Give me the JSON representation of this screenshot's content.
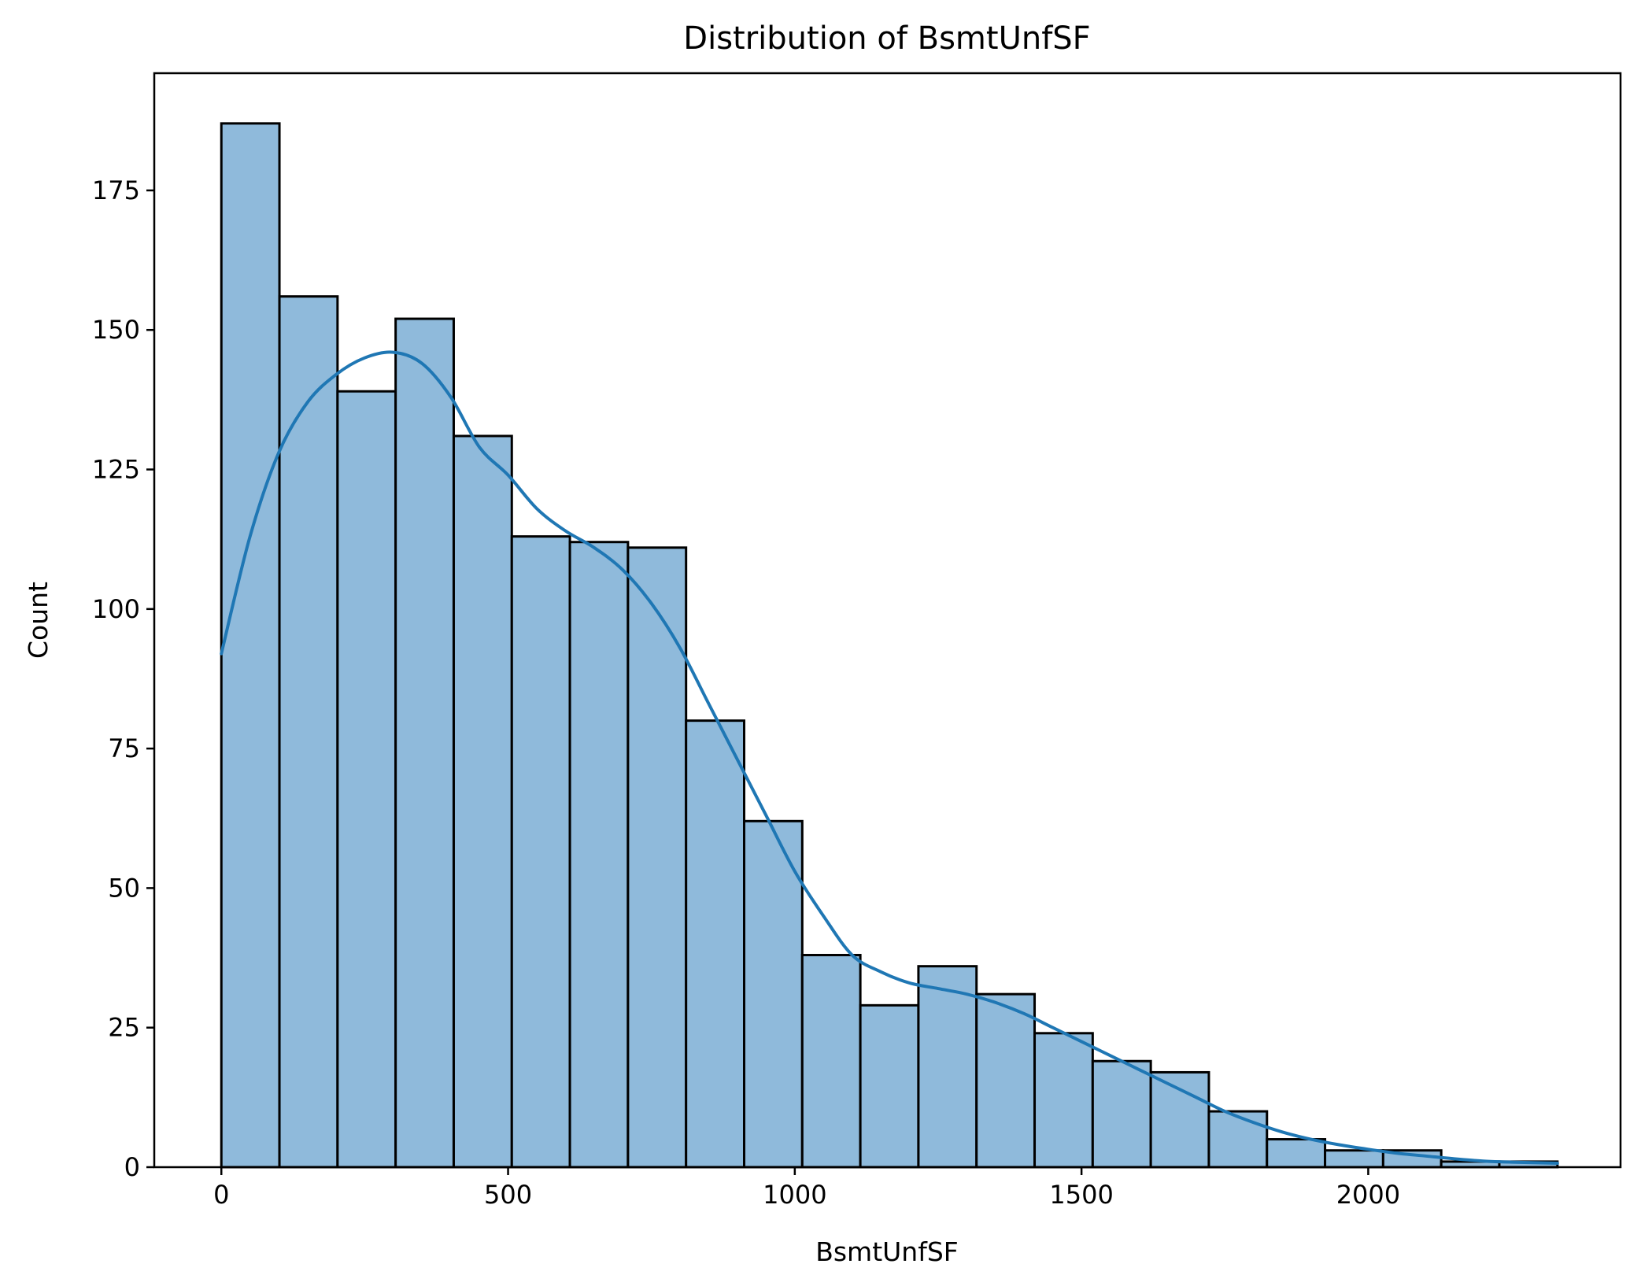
{
  "chart_data": {
    "type": "bar",
    "subtype": "histogram-with-kde",
    "title": "Distribution of BsmtUnfSF",
    "xlabel": "BsmtUnfSF",
    "ylabel": "Count",
    "xlim": [
      -117,
      2440
    ],
    "ylim": [
      0,
      196
    ],
    "xticks": [
      0,
      500,
      1000,
      1500,
      2000
    ],
    "yticks": [
      0,
      25,
      50,
      75,
      100,
      125,
      150,
      175
    ],
    "bin_edges": [
      0,
      101.3,
      202.6,
      303.9,
      405.2,
      506.5,
      607.8,
      709.1,
      810.4,
      911.7,
      1013,
      1114.3,
      1215.6,
      1316.9,
      1418.2,
      1519.5,
      1620.8,
      1722.1,
      1823.4,
      1924.7,
      2026,
      2127.3,
      2228.6,
      2330
    ],
    "values": [
      187,
      156,
      139,
      152,
      131,
      113,
      112,
      111,
      80,
      62,
      38,
      29,
      36,
      31,
      24,
      19,
      17,
      10,
      5,
      3,
      3,
      1,
      1
    ],
    "kde": {
      "x": [
        0,
        50,
        100,
        150,
        200,
        250,
        300,
        350,
        400,
        450,
        500,
        550,
        600,
        650,
        700,
        750,
        800,
        850,
        900,
        950,
        1000,
        1050,
        1100,
        1150,
        1200,
        1250,
        1300,
        1350,
        1400,
        1450,
        1500,
        1550,
        1600,
        1650,
        1700,
        1750,
        1800,
        1850,
        1900,
        1950,
        2000,
        2050,
        2100,
        2150,
        2200,
        2250,
        2330
      ],
      "y": [
        92,
        113,
        128,
        137,
        142,
        145,
        146,
        144,
        138,
        129,
        124,
        118,
        114,
        111,
        107,
        101,
        93,
        83,
        73,
        63,
        53,
        45,
        38,
        35,
        33,
        32,
        31,
        29.5,
        27.5,
        25,
        22.5,
        20,
        17.5,
        15,
        12.5,
        10,
        8,
        6.3,
        5,
        4,
        3.2,
        2.5,
        2,
        1.5,
        1.1,
        0.9,
        0.7
      ]
    },
    "colors": {
      "bar_fill": "#8fbadb",
      "bar_edge": "#000000",
      "kde_line": "#1f77b4"
    },
    "grid": false,
    "legend": "none"
  }
}
